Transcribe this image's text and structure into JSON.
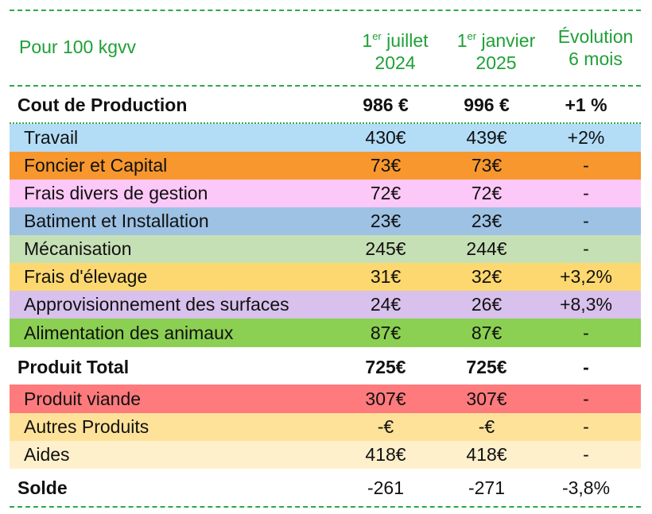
{
  "header": {
    "unit": "Pour 100 kgvv",
    "col1_sup": "er",
    "col1_pre": "1",
    "col1_rest": " juillet",
    "col1_year": "2024",
    "col2_sup": "er",
    "col2_pre": "1",
    "col2_rest": " janvier",
    "col2_year": "2025",
    "col3_line1": "Évolution",
    "col3_line2": "6 mois"
  },
  "colors": {
    "accent": "#1fa037",
    "travail": "#b3dcf7",
    "foncier": "#f7972e",
    "frais_gestion": "#fcc8f7",
    "batiment": "#9dc2e4",
    "mecanisation": "#c6e0b6",
    "frais_elevage": "#fdd870",
    "approvisionnement": "#d8c1ec",
    "alimentation": "#8bd052",
    "produit_viande": "#ff7a7c",
    "autres_produits": "#ffe29a",
    "aides": "#fff0cc"
  },
  "rows": [
    {
      "label": "Cout de Production",
      "v2024": "986 €",
      "v2025": "996 €",
      "evol": "+1 %"
    },
    {
      "label": "Travail",
      "v2024": "430€",
      "v2025": "439€",
      "evol": "+2%"
    },
    {
      "label": "Foncier et Capital",
      "v2024": "73€",
      "v2025": "73€",
      "evol": "-"
    },
    {
      "label": "Frais divers de gestion",
      "v2024": "72€",
      "v2025": "72€",
      "evol": "-"
    },
    {
      "label": "Batiment et Installation",
      "v2024": "23€",
      "v2025": "23€",
      "evol": "-"
    },
    {
      "label": "Mécanisation",
      "v2024": "245€",
      "v2025": "244€",
      "evol": "-"
    },
    {
      "label": "Frais d'élevage",
      "v2024": "31€",
      "v2025": "32€",
      "evol": "+3,2%"
    },
    {
      "label": "Approvisionnement des surfaces",
      "v2024": "24€",
      "v2025": "26€",
      "evol": "+8,3%"
    },
    {
      "label": "Alimentation des animaux",
      "v2024": "87€",
      "v2025": "87€",
      "evol": "-"
    },
    {
      "label": "Produit Total",
      "v2024": "725€",
      "v2025": "725€",
      "evol": "-"
    },
    {
      "label": "Produit viande",
      "v2024": "307€",
      "v2025": "307€",
      "evol": "-"
    },
    {
      "label": "Autres Produits",
      "v2024": "-€",
      "v2025": "-€",
      "evol": "-"
    },
    {
      "label": "Aides",
      "v2024": "418€",
      "v2025": "418€",
      "evol": "-"
    },
    {
      "label": "Solde",
      "v2024": "-261",
      "v2025": "-271",
      "evol": "-3,8%"
    }
  ]
}
